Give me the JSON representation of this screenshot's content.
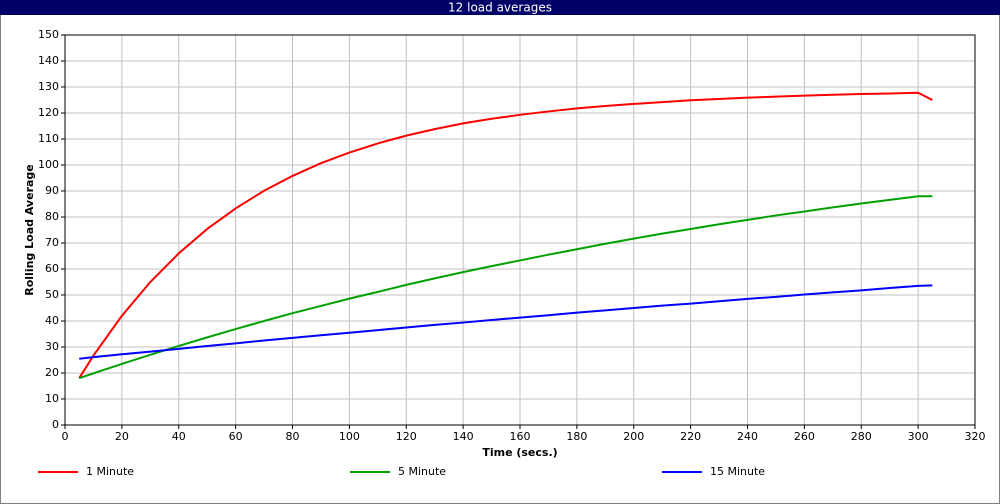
{
  "chart_data": {
    "type": "line",
    "title": "12 load averages",
    "x_label": "Time (secs.)",
    "y_label": "Rolling Load Average",
    "x": [
      5,
      10,
      20,
      30,
      40,
      50,
      60,
      70,
      80,
      90,
      100,
      110,
      120,
      130,
      140,
      150,
      160,
      170,
      180,
      190,
      200,
      210,
      220,
      230,
      240,
      250,
      260,
      270,
      280,
      290,
      300,
      305
    ],
    "series": [
      {
        "name": "1 Minute",
        "color": "#ff0000",
        "values": [
          18,
          26.7,
          42.0,
          55.0,
          66.0,
          75.4,
          83.3,
          90.1,
          95.8,
          100.7,
          104.8,
          108.3,
          111.3,
          113.8,
          116.0,
          117.8,
          119.3,
          120.6,
          121.8,
          122.7,
          123.5,
          124.2,
          124.9,
          125.4,
          125.9,
          126.3,
          126.7,
          127.0,
          127.3,
          127.5,
          127.8,
          125
        ]
      },
      {
        "name": "5 Minute",
        "color": "#00a000",
        "values": [
          18,
          19.9,
          23.5,
          27.0,
          30.4,
          33.7,
          36.9,
          40.0,
          43.0,
          45.8,
          48.6,
          51.2,
          53.9,
          56.4,
          58.8,
          61.1,
          63.3,
          65.5,
          67.6,
          69.7,
          71.7,
          73.6,
          75.4,
          77.2,
          78.9,
          80.6,
          82.1,
          83.7,
          85.2,
          86.6,
          88.0,
          88.0
        ]
      },
      {
        "name": "15 Minute",
        "color": "#0000ff",
        "values": [
          25.5,
          26.1,
          27.2,
          28.2,
          29.3,
          30.4,
          31.4,
          32.5,
          33.5,
          34.5,
          35.5,
          36.5,
          37.5,
          38.5,
          39.4,
          40.4,
          41.3,
          42.2,
          43.2,
          44.1,
          45.0,
          45.9,
          46.7,
          47.6,
          48.5,
          49.3,
          50.2,
          51.0,
          51.8,
          52.7,
          53.5,
          53.7
        ]
      }
    ],
    "xlim": [
      0,
      320
    ],
    "xticks": [
      0,
      20,
      40,
      60,
      80,
      100,
      120,
      140,
      160,
      180,
      200,
      220,
      240,
      260,
      280,
      300,
      320
    ],
    "ylim": [
      0,
      150
    ],
    "yticks": [
      0,
      10,
      20,
      30,
      40,
      50,
      60,
      70,
      80,
      90,
      100,
      110,
      120,
      130,
      140,
      150
    ],
    "grid": true,
    "legend": "bottom"
  }
}
